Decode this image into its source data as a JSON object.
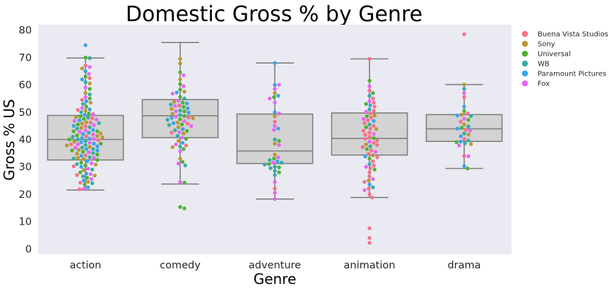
{
  "colors": {
    "plot_bg": "#EAEAF2",
    "box_fill": "#D3D3D3",
    "box_edge": "#7F7F7F",
    "studios": {
      "Buena Vista Studios": "#F77189",
      "Sony": "#BB9832",
      "Universal": "#50B131",
      "WB": "#36ADA4",
      "Paramount Pictures": "#3BA3EC",
      "Fox": "#E866F4"
    }
  },
  "chart_data": {
    "type": "box+swarm",
    "title": "Domestic Gross % by Genre",
    "xlabel": "Genre",
    "ylabel": "Gross % US",
    "categories": [
      "action",
      "comedy",
      "adventure",
      "animation",
      "drama"
    ],
    "ylim": [
      -2,
      82
    ],
    "yticks": [
      0,
      10,
      20,
      30,
      40,
      50,
      60,
      70,
      80
    ],
    "grid": false,
    "legend": {
      "placement": "outside-right-top",
      "entries": [
        "Buena Vista Studios",
        "Sony",
        "Universal",
        "WB",
        "Paramount Pictures",
        "Fox"
      ]
    },
    "boxes": [
      {
        "category": "action",
        "whisker_low": 21.5,
        "q1": 32.5,
        "median": 40.0,
        "q3": 48.8,
        "whisker_high": 69.8
      },
      {
        "category": "comedy",
        "whisker_low": 23.7,
        "q1": 40.7,
        "median": 48.7,
        "q3": 54.6,
        "whisker_high": 75.5
      },
      {
        "category": "adventure",
        "whisker_low": 18.2,
        "q1": 31.2,
        "median": 35.8,
        "q3": 49.3,
        "whisker_high": 68.0
      },
      {
        "category": "animation",
        "whisker_low": 18.8,
        "q1": 34.3,
        "median": 40.4,
        "q3": 49.7,
        "whisker_high": 69.5
      },
      {
        "category": "drama",
        "whisker_low": 29.4,
        "q1": 39.3,
        "median": 43.9,
        "q3": 49.1,
        "whisker_high": 60.1
      }
    ],
    "points": [
      {
        "category": "action",
        "studio": "Paramount Pictures",
        "values": [
          74.5,
          65.0,
          62.0,
          54.0,
          51.0,
          49.0,
          47.0,
          45.0,
          43.5,
          42.0,
          40.5,
          39.0,
          37.5,
          36.0,
          34.0,
          32.0,
          30.0,
          27.5,
          25.0,
          22.5,
          40.3,
          38.5,
          36.5
        ]
      },
      {
        "category": "action",
        "studio": "WB",
        "values": [
          69.8,
          61.0,
          56.5,
          53.0,
          50.0,
          48.0,
          46.0,
          44.0,
          42.5,
          41.0,
          39.5,
          38.0,
          36.5,
          35.0,
          33.0,
          31.0,
          29.0,
          26.5,
          24.0,
          44.5,
          40.0,
          37.0,
          33.5
        ]
      },
      {
        "category": "action",
        "studio": "Universal",
        "values": [
          70.0,
          63.0,
          58.5,
          55.0,
          52.0,
          49.5,
          47.5,
          45.5,
          43.0,
          41.5,
          40.0,
          38.5,
          36.0,
          34.5,
          32.5,
          30.5,
          28.0,
          26.0,
          23.5,
          48.5,
          43.0,
          35.5,
          31.5
        ]
      },
      {
        "category": "action",
        "studio": "Sony",
        "values": [
          66.0,
          60.5,
          57.0,
          53.5,
          50.5,
          48.2,
          46.3,
          44.2,
          42.2,
          40.8,
          39.2,
          37.8,
          36.2,
          34.8,
          32.8,
          30.8,
          28.8,
          26.8,
          24.5,
          45.8,
          41.3,
          37.3,
          33.2
        ]
      },
      {
        "category": "action",
        "studio": "Fox",
        "values": [
          66.5,
          64.0,
          59.0,
          55.5,
          51.5,
          49.3,
          47.3,
          45.3,
          43.3,
          41.8,
          40.2,
          38.8,
          37.0,
          35.3,
          33.3,
          31.3,
          29.3,
          27.3,
          25.5,
          22.0,
          46.8,
          42.8,
          38.2
        ]
      },
      {
        "category": "action",
        "studio": "Buena Vista Studios",
        "values": [
          67.0,
          62.5,
          54.5,
          50.8,
          47.8,
          44.8,
          41.2,
          38.2,
          34.2,
          30.2,
          27.0,
          24.2,
          21.8,
          46.2,
          39.8
        ]
      },
      {
        "category": "comedy",
        "studio": "Universal",
        "values": [
          15.3,
          14.8,
          24.2,
          31.8,
          36.5,
          40.2,
          43.1,
          45.5,
          47.4,
          48.6,
          50.3,
          51.9,
          53.5,
          55.6,
          58.2,
          60.3,
          64.6
        ]
      },
      {
        "category": "comedy",
        "studio": "Sony",
        "values": [
          69.5,
          67.8,
          62.0,
          57.5,
          53.8,
          51.2,
          49.4,
          47.8,
          46.2,
          44.5,
          42.2,
          39.5,
          37.2,
          33.0
        ]
      },
      {
        "category": "comedy",
        "studio": "Fox",
        "values": [
          63.5,
          59.5,
          56.8,
          54.2,
          52.3,
          50.3,
          48.4,
          46.7,
          44.9,
          42.7,
          40.6,
          38.2,
          35.7,
          31.2,
          24.4
        ]
      },
      {
        "category": "comedy",
        "studio": "WB",
        "values": [
          55.0,
          52.8,
          50.6,
          49.0,
          47.2,
          45.3,
          43.4,
          41.3,
          37.4,
          30.5
        ]
      },
      {
        "category": "comedy",
        "studio": "Paramount Pictures",
        "values": [
          57.2,
          53.2,
          51.4,
          49.8,
          47.9,
          46.0,
          43.8,
          38.8
        ]
      },
      {
        "category": "comedy",
        "studio": "Buena Vista Studios",
        "values": [
          52.4,
          48.1,
          45.8,
          42.5,
          37.8
        ]
      },
      {
        "category": "adventure",
        "studio": "Paramount Pictures",
        "values": [
          68.0,
          60.0,
          56.0,
          50.0,
          44.0,
          32.0
        ]
      },
      {
        "category": "adventure",
        "studio": "Fox",
        "values": [
          60.0,
          58.5,
          55.0,
          53.5,
          49.5,
          45.0,
          43.5,
          38.0,
          33.5,
          31.5,
          24.5,
          20.5,
          18.2
        ]
      },
      {
        "category": "adventure",
        "studio": "WB",
        "values": [
          40.0,
          32.5,
          31.5,
          30.8,
          30.0,
          29.5,
          28.5,
          27.0
        ]
      },
      {
        "category": "adventure",
        "studio": "Universal",
        "values": [
          55.5,
          39.5,
          33.0,
          31.0,
          29.8,
          28.0
        ]
      },
      {
        "category": "adventure",
        "studio": "Sony",
        "values": [
          57.0,
          48.5,
          38.5,
          34.5
        ]
      },
      {
        "category": "adventure",
        "studio": "Buena Vista Studios",
        "values": [
          46.5,
          22.0
        ]
      },
      {
        "category": "animation",
        "studio": "Buena Vista Studios",
        "values": [
          69.5,
          58.0,
          55.0,
          53.5,
          52.0,
          50.5,
          49.5,
          48.0,
          47.0,
          46.0,
          45.0,
          44.0,
          43.2,
          42.5,
          41.8,
          41.0,
          40.3,
          39.6,
          38.8,
          38.0,
          37.2,
          36.0,
          34.8,
          33.5,
          32.0,
          30.5,
          29.5,
          28.0,
          26.5,
          24.5,
          22.0,
          20.0,
          18.8,
          7.5,
          4.0,
          2.2
        ]
      },
      {
        "category": "animation",
        "studio": "Universal",
        "values": [
          61.5,
          57.0,
          53.0,
          48.5,
          44.5,
          40.5,
          36.5,
          33.0,
          29.0
        ]
      },
      {
        "category": "animation",
        "studio": "WB",
        "values": [
          56.0,
          51.0,
          45.5,
          37.5,
          31.0,
          22.5
        ]
      },
      {
        "category": "animation",
        "studio": "Fox",
        "values": [
          59.5,
          54.0,
          50.2,
          47.5,
          42.0,
          39.2,
          35.5,
          30.0,
          25.5,
          21.5
        ]
      },
      {
        "category": "animation",
        "studio": "Sony",
        "values": [
          48.8,
          43.8,
          38.2,
          34.2,
          25.0
        ]
      },
      {
        "category": "animation",
        "studio": "Paramount Pictures",
        "values": [
          52.5,
          46.8,
          33.8,
          23.5
        ]
      },
      {
        "category": "drama",
        "studio": "Buena Vista Studios",
        "values": [
          78.5,
          55.5,
          49.5,
          46.5,
          43.6,
          40.2,
          34.0
        ]
      },
      {
        "category": "drama",
        "studio": "Sony",
        "values": [
          60.1,
          49.1,
          45.5,
          41.8,
          38.3
        ]
      },
      {
        "category": "drama",
        "studio": "WB",
        "values": [
          58.5,
          48.6,
          44.8,
          42.2,
          39.6,
          38.6
        ]
      },
      {
        "category": "drama",
        "studio": "Paramount Pictures",
        "values": [
          52.0,
          48.8,
          44.0,
          41.2,
          39.2,
          30.3
        ]
      },
      {
        "category": "drama",
        "studio": "Universal",
        "values": [
          50.4,
          47.2,
          44.3,
          39.0,
          29.4
        ]
      },
      {
        "category": "drama",
        "studio": "Fox",
        "values": [
          57.0,
          47.6,
          43.2,
          37.8,
          33.9
        ]
      }
    ]
  }
}
